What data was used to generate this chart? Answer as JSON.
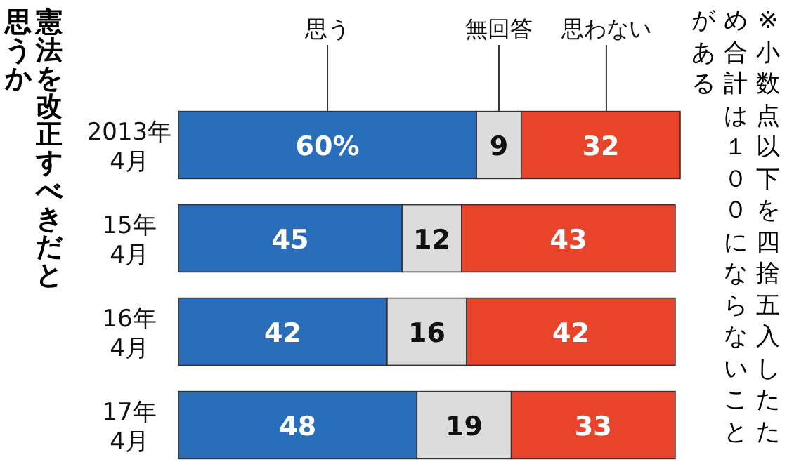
{
  "chart_data": {
    "type": "bar",
    "orientation": "horizontal",
    "stacked": true,
    "legend": "top",
    "title": "憲法を改正すべきだと思うか",
    "annotations": [
      "※小数点以下を四捨五入したため合計は１００にならないことがある"
    ],
    "categories": [
      "2013年\n4月",
      "15年\n4月",
      "16年\n4月",
      "17年\n4月"
    ],
    "series": [
      {
        "name": "思う",
        "color": "#2a6ebb",
        "values": [
          60,
          45,
          42,
          48
        ],
        "value_labels": [
          "60%",
          "45",
          "42",
          "48"
        ]
      },
      {
        "name": "無回答",
        "color": "#dcdcdc",
        "values": [
          9,
          12,
          16,
          19
        ],
        "value_labels": [
          "9",
          "12",
          "16",
          "19"
        ]
      },
      {
        "name": "思わない",
        "color": "#e8442b",
        "values": [
          32,
          43,
          42,
          33
        ],
        "value_labels": [
          "32",
          "43",
          "42",
          "33"
        ]
      }
    ]
  }
}
